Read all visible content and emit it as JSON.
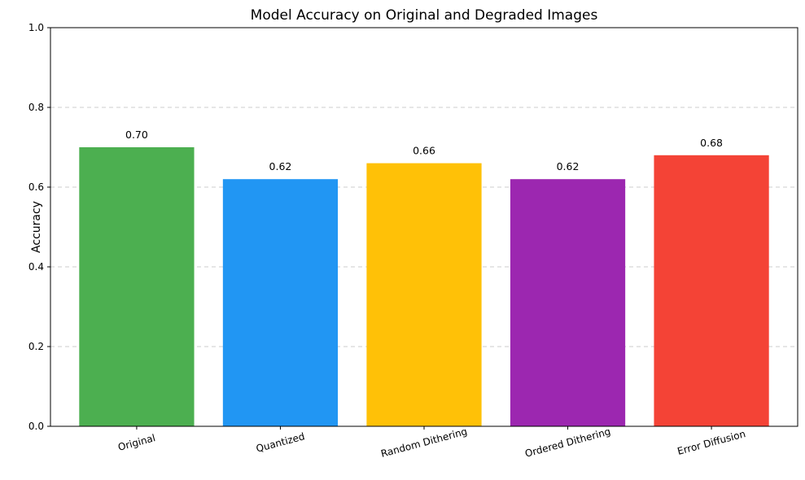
{
  "chart_data": {
    "type": "bar",
    "title": "Model Accuracy on Original and Degraded Images",
    "xlabel": "",
    "ylabel": "Accuracy",
    "categories": [
      "Original",
      "Quantized",
      "Random Dithering",
      "Ordered Dithering",
      "Error Diffusion"
    ],
    "values": [
      0.7,
      0.62,
      0.66,
      0.62,
      0.68
    ],
    "data_labels": [
      "0.70",
      "0.62",
      "0.66",
      "0.62",
      "0.68"
    ],
    "colors": [
      "#4CAF50",
      "#2196F3",
      "#FFC107",
      "#9C27B0",
      "#F44336"
    ],
    "ylim": [
      0,
      1.0
    ],
    "yticks": [
      0.0,
      0.2,
      0.4,
      0.6,
      0.8,
      1.0
    ],
    "ytick_labels": [
      "0.0",
      "0.2",
      "0.4",
      "0.6",
      "0.8",
      "1.0"
    ],
    "grid": "y-dashed",
    "legend": "none"
  }
}
